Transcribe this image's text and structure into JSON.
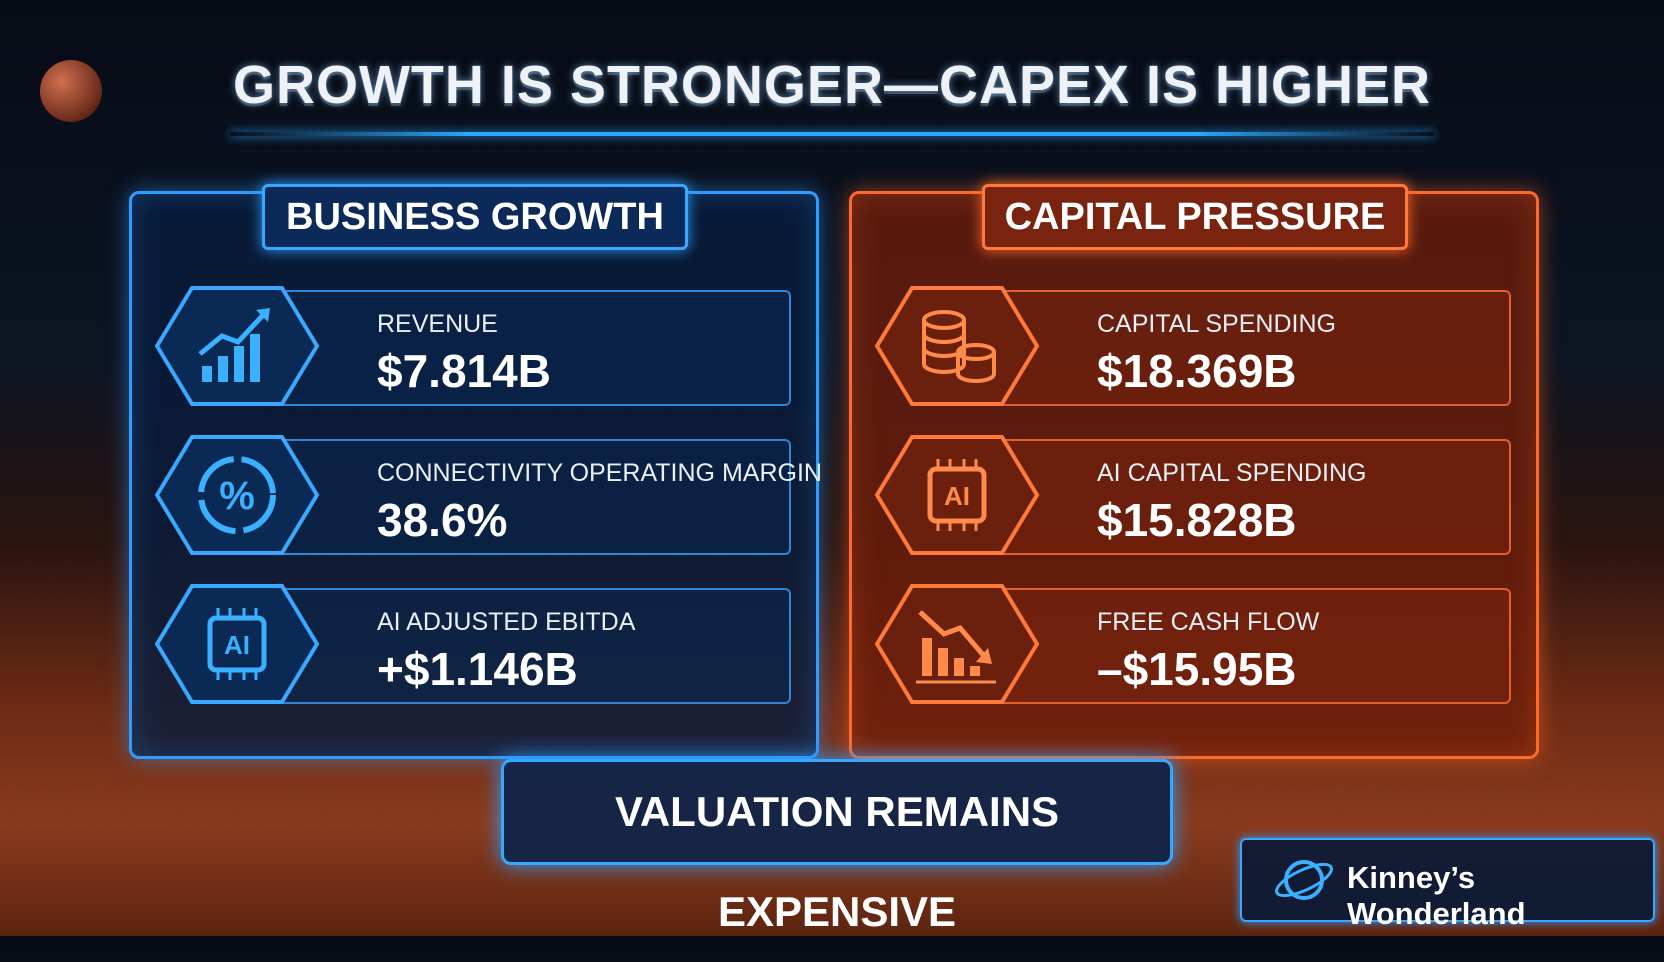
{
  "header": {
    "title": "GROWTH IS STRONGER—CAPEX IS HIGHER"
  },
  "panels": [
    {
      "heading": "BUSINESS GROWTH",
      "items": [
        {
          "label": "REVENUE",
          "value": "$7.814B"
        },
        {
          "label": "CONNECTIVITY OPERATING MARGIN",
          "value": "38.6%"
        },
        {
          "label": "AI ADJUSTED EBITDA",
          "value": "+$1.146B"
        }
      ]
    },
    {
      "heading": "CAPITAL PRESSURE",
      "items": [
        {
          "label": "CAPITAL SPENDING",
          "value": "$18.369B"
        },
        {
          "label": "AI CAPITAL SPENDING",
          "value": "$15.828B"
        },
        {
          "label": "FREE CASH FLOW",
          "value": "–$15.95B"
        }
      ]
    }
  ],
  "footer": {
    "banner": "VALUATION REMAINS EXPENSIVE",
    "brand": "Kinney’s Wonderland"
  }
}
